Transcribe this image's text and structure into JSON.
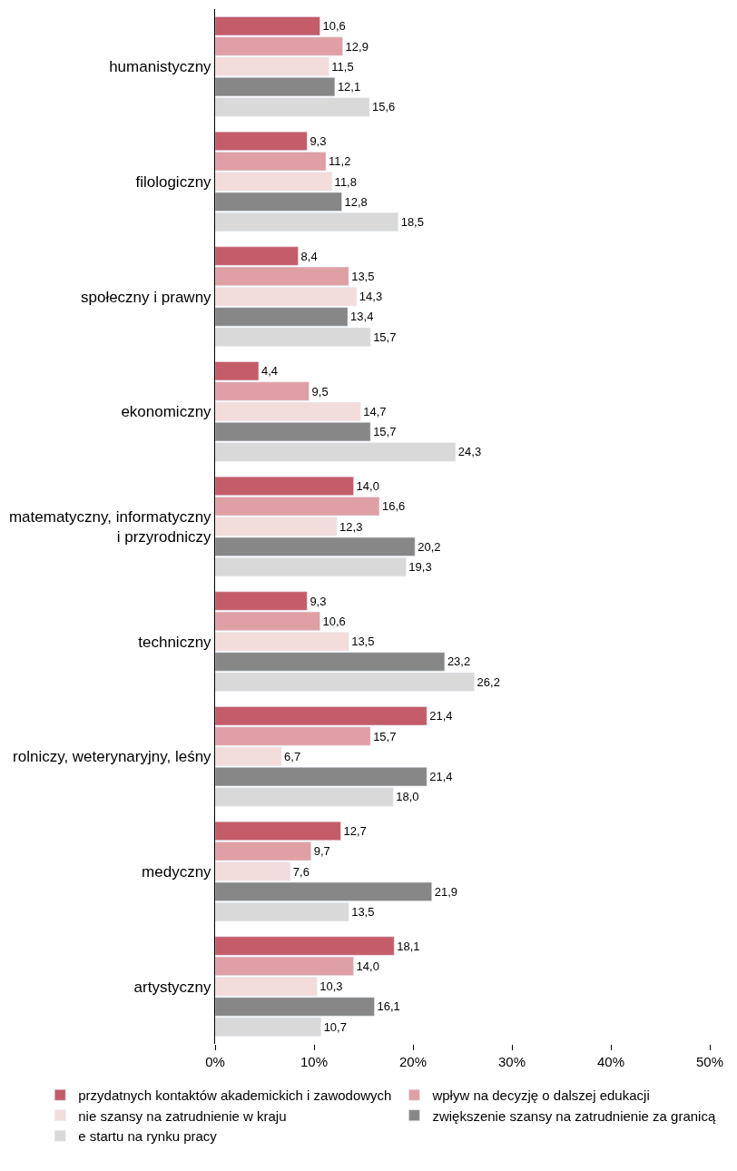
{
  "chart_data": {
    "type": "bar",
    "orientation": "horizontal",
    "categories": [
      "humanistyczny",
      "filologiczny",
      "społeczny i prawny",
      "ekonomiczny",
      "matematyczny, informatyczny\ni przyrodniczy",
      "techniczny",
      "rolniczy, weterynaryjny, leśny",
      "medyczny",
      "artystyczny"
    ],
    "series": [
      {
        "name": "przydatnych kontaktów akademickich i zawodowych",
        "color": "#c45c6a",
        "values": [
          10.6,
          9.3,
          8.4,
          4.4,
          14.0,
          9.3,
          21.4,
          12.7,
          18.1
        ],
        "value_labels": [
          "10,6",
          "9,3",
          "8,4",
          "4,4",
          "14,0",
          "9,3",
          "21,4",
          "12,7",
          "18,1"
        ]
      },
      {
        "name": "wpływ na decyzję o dalszej edukacji",
        "color": "#dfa0a5",
        "values": [
          12.9,
          11.2,
          13.5,
          9.5,
          16.6,
          10.6,
          15.7,
          9.7,
          14.0
        ],
        "value_labels": [
          "12,9",
          "11,2",
          "13,5",
          "9,5",
          "16,6",
          "10,6",
          "15,7",
          "9,7",
          "14,0"
        ]
      },
      {
        "name": "nie szansy na zatrudnienie w kraju",
        "color": "#f2dcdc",
        "values": [
          11.5,
          11.8,
          14.3,
          14.7,
          12.3,
          13.5,
          6.7,
          7.6,
          10.3
        ],
        "value_labels": [
          "11,5",
          "11,8",
          "14,3",
          "14,7",
          "12,3",
          "13,5",
          "6,7",
          "7,6",
          "10,3"
        ]
      },
      {
        "name": "zwiększenie szansy na zatrudnienie za granicą",
        "color": "#878787",
        "values": [
          12.1,
          12.8,
          13.4,
          15.7,
          20.2,
          23.2,
          21.4,
          21.9,
          16.1
        ],
        "value_labels": [
          "12,1",
          "12,8",
          "13,4",
          "15,7",
          "20,2",
          "23,2",
          "21,4",
          "21,9",
          "16,1"
        ]
      },
      {
        "name": "e startu na rynku pracy",
        "color": "#d9d9d9",
        "values": [
          15.6,
          18.5,
          15.7,
          24.3,
          19.3,
          26.2,
          18.0,
          13.5,
          10.7
        ],
        "value_labels": [
          "15,6",
          "18,5",
          "15,7",
          "24,3",
          "19,3",
          "26,2",
          "18,0",
          "13,5",
          "10,7"
        ]
      }
    ],
    "xlim": [
      0,
      50
    ],
    "xticks": [
      {
        "value": 0,
        "label": "0%"
      },
      {
        "value": 10,
        "label": "10%"
      },
      {
        "value": 20,
        "label": "20%"
      },
      {
        "value": 30,
        "label": "30%"
      },
      {
        "value": 40,
        "label": "40%"
      },
      {
        "value": 50,
        "label": "50%"
      }
    ],
    "grid": false,
    "legend": "bottom"
  }
}
